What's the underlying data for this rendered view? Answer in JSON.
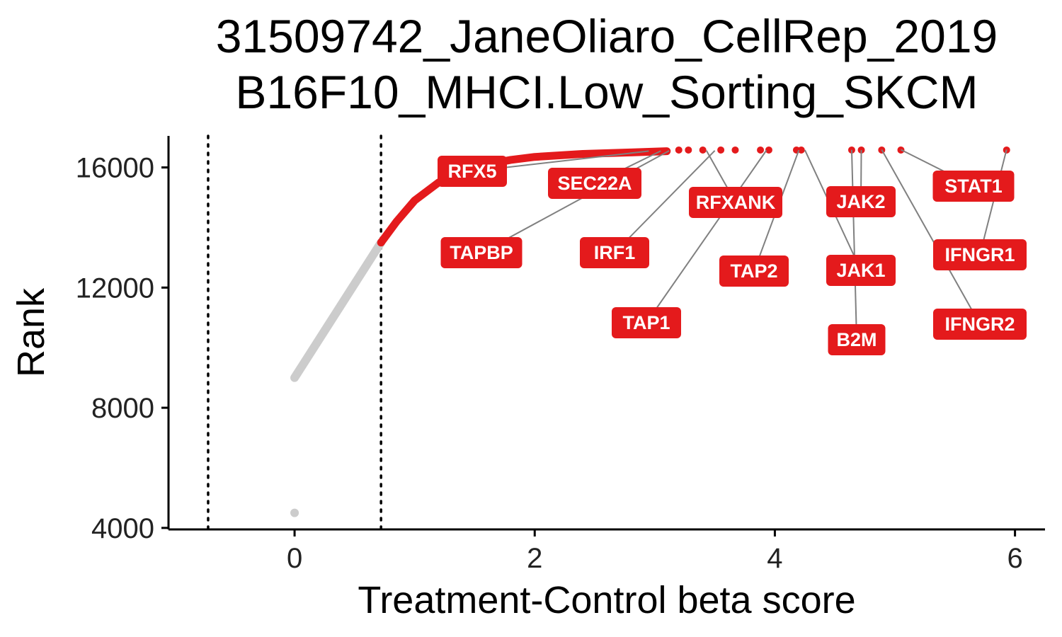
{
  "chart_data": {
    "type": "scatter",
    "title_lines": [
      "31509742_JaneOliaro_CellRep_2019",
      "B16F10_MHCI.Low_Sorting_SKCM"
    ],
    "xlabel": "Treatment-Control beta score",
    "ylabel": "Rank",
    "xlim": [
      -1.05,
      6.25
    ],
    "ylim": [
      3950,
      17050
    ],
    "x_ticks": [
      0,
      2,
      4,
      6
    ],
    "x_tick_labels": [
      "0",
      "2",
      "4",
      "6"
    ],
    "y_ticks": [
      4000,
      8000,
      12000,
      16000
    ],
    "y_tick_labels": [
      "4000",
      "8000",
      "12000",
      "16000"
    ],
    "cutoff_lines": [
      -0.72,
      0.72
    ],
    "grid": false,
    "colors": {
      "significant": "#e41a1c",
      "background": "#cccccc",
      "connector": "#808080",
      "cutoff": "#000000"
    },
    "background_points": [
      [
        0,
        4500
      ],
      [
        0,
        9000
      ],
      [
        0.72,
        13500
      ]
    ],
    "significant_curve": [
      [
        0.72,
        13500
      ],
      [
        0.85,
        14200
      ],
      [
        1.0,
        14900
      ],
      [
        1.2,
        15500
      ],
      [
        1.4,
        15850
      ],
      [
        1.6,
        16100
      ],
      [
        1.8,
        16250
      ],
      [
        2.0,
        16350
      ],
      [
        2.4,
        16450
      ],
      [
        2.8,
        16500
      ],
      [
        3.1,
        16540
      ]
    ],
    "highlighted_genes": [
      {
        "name": "RFX5",
        "x": 2.95,
        "y": 16545
      },
      {
        "name": "SEC22A",
        "x": 3.05,
        "y": 16550
      },
      {
        "name": "TAPBP",
        "x": 3.12,
        "y": 16555
      },
      {
        "name": "IRF1",
        "x": 3.5,
        "y": 16560
      },
      {
        "name": "RFXANK",
        "x": 3.43,
        "y": 16560
      },
      {
        "name": "TAP1",
        "x": 3.93,
        "y": 16570
      },
      {
        "name": "TAP2",
        "x": 4.2,
        "y": 16575
      },
      {
        "name": "JAK2",
        "x": 4.72,
        "y": 16580
      },
      {
        "name": "JAK1",
        "x": 4.25,
        "y": 16580
      },
      {
        "name": "B2M",
        "x": 4.64,
        "y": 16585
      },
      {
        "name": "STAT1",
        "x": 5.05,
        "y": 16590
      },
      {
        "name": "IFNGR1",
        "x": 5.93,
        "y": 16595
      },
      {
        "name": "IFNGR2",
        "x": 4.89,
        "y": 16590
      }
    ],
    "extra_points": [
      3.2,
      3.28,
      3.4,
      3.55,
      3.67,
      3.88,
      3.95,
      4.18,
      4.22,
      4.64,
      4.72,
      4.89,
      5.05,
      5.93
    ]
  }
}
